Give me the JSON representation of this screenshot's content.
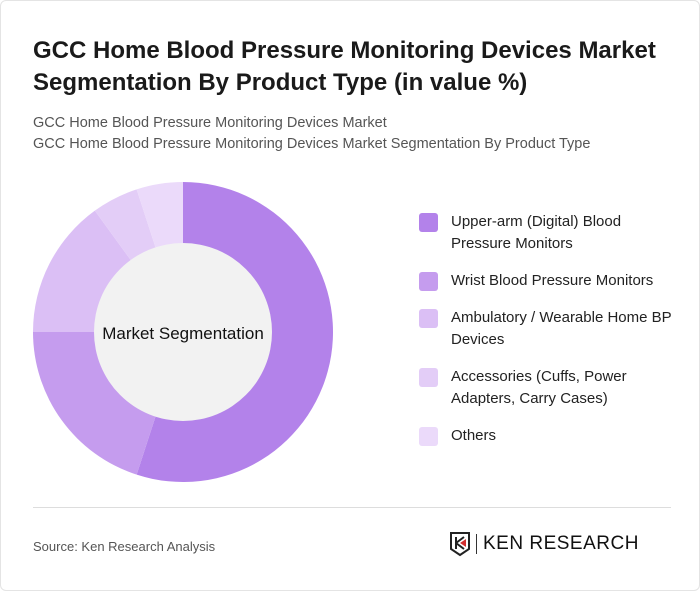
{
  "title": "GCC Home Blood Pressure Monitoring Devices Market Segmentation By Product Type (in value %)",
  "subtitle1": "GCC Home Blood Pressure Monitoring Devices Market",
  "subtitle2": "GCC Home Blood Pressure Monitoring Devices Market Segmentation By Product Type",
  "source": "Source: Ken Research Analysis",
  "logo_text": "KEN RESEARCH",
  "chart_data": {
    "type": "pie",
    "variant": "donut",
    "center_label": "Market Segmentation",
    "legend_position": "right",
    "categories": [
      "Upper-arm (Digital) Blood Pressure Monitors",
      "Wrist Blood Pressure Monitors",
      "Ambulatory / Wearable Home BP Devices",
      "Accessories (Cuffs, Power Adapters, Carry Cases)",
      "Others"
    ],
    "values": [
      55,
      20,
      15,
      5,
      5
    ],
    "colors": [
      "#b382ea",
      "#c59cee",
      "#dbbff5",
      "#e3cdf7",
      "#ebdafa"
    ]
  }
}
